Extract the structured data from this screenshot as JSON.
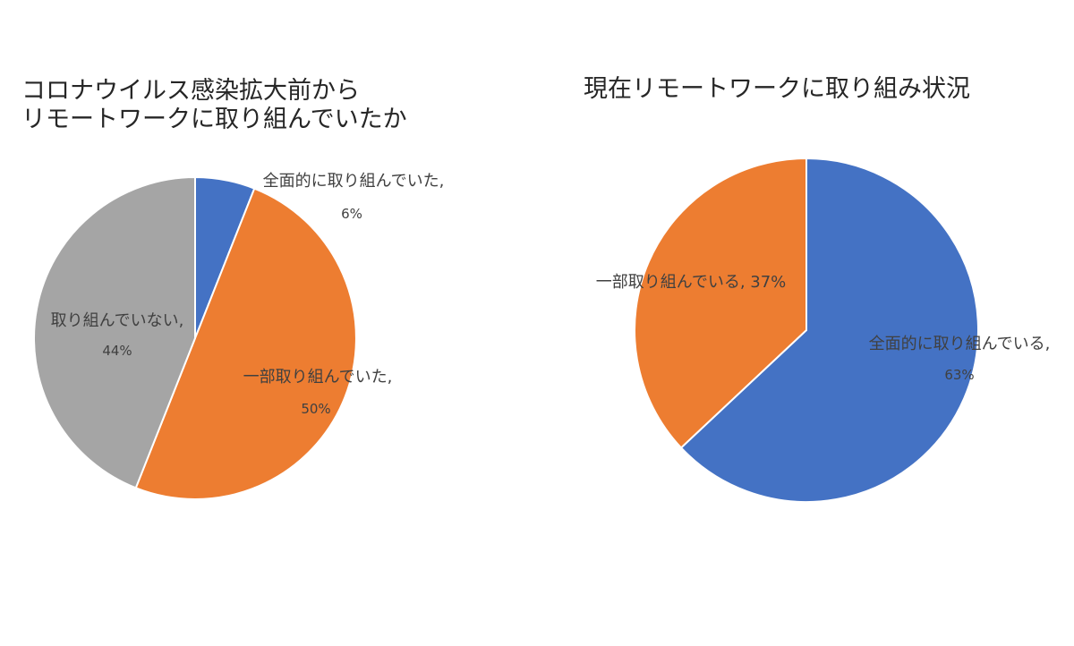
{
  "chart_data": [
    {
      "type": "pie",
      "title_lines": [
        "コロナウイルス感染拡大前から",
        "リモートワークに取り組んでいたか"
      ],
      "slices": [
        {
          "label": "全面的に取り組んでいた,",
          "pct_text": "6%",
          "value": 6,
          "color": "#4472C4"
        },
        {
          "label": "一部取り組んでいた,",
          "pct_text": "50%",
          "value": 50,
          "color": "#ED7D31"
        },
        {
          "label": "取り組んでいない,",
          "pct_text": "44%",
          "value": 44,
          "color": "#A5A5A5"
        }
      ]
    },
    {
      "type": "pie",
      "title_lines": [
        "現在リモートワークに取り組み状況"
      ],
      "slices": [
        {
          "label": "全面的に取り組んでいる,",
          "pct_text": "63%",
          "value": 63,
          "color": "#4472C4"
        },
        {
          "label": "一部取り組んでいる, 37%",
          "pct_text": "",
          "value": 37,
          "color": "#ED7D31"
        }
      ]
    }
  ]
}
